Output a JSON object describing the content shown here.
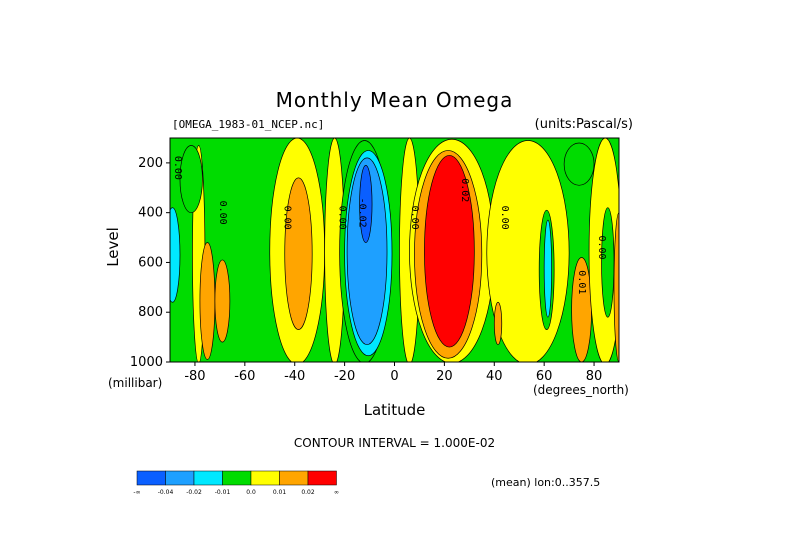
{
  "chart_data": {
    "type": "heatmap",
    "title": "Monthly Mean Omega",
    "subtitle_left": "[OMEGA_1983-01_NCEP.nc]",
    "subtitle_right": "(units:Pascal/s)",
    "xlabel": "Latitude",
    "x_unit": "(degrees_north)",
    "ylabel": "Level",
    "y_unit": "(millibar)",
    "xlim": [
      -90,
      90
    ],
    "ylim": [
      1000,
      100
    ],
    "x_ticks": [
      -80,
      -60,
      -40,
      -20,
      0,
      20,
      40,
      60,
      80
    ],
    "y_ticks": [
      200,
      400,
      600,
      800,
      1000
    ],
    "contour_interval_text": "CONTOUR INTERVAL = 1.000E-02",
    "contour_labels": [
      {
        "text": "0.00",
        "x": -88,
        "y": 220
      },
      {
        "text": "0.00",
        "x": -70,
        "y": 400
      },
      {
        "text": "0.00",
        "x": -44,
        "y": 420
      },
      {
        "text": "0.00",
        "x": -22,
        "y": 420
      },
      {
        "text": "-0.02",
        "x": -14,
        "y": 400
      },
      {
        "text": "0.00",
        "x": 7,
        "y": 420
      },
      {
        "text": "0.02",
        "x": 27,
        "y": 310
      },
      {
        "text": "0.00",
        "x": 43,
        "y": 420
      },
      {
        "text": "0.01",
        "x": 74,
        "y": 680
      },
      {
        "text": "0.00",
        "x": 82,
        "y": 540
      }
    ],
    "colorbar": {
      "colors": [
        "#0a5fff",
        "#1ea0ff",
        "#00e8ff",
        "#00dc00",
        "#ffff00",
        "#ffa500",
        "#ff0000"
      ],
      "labels": [
        "-∞",
        "-0.04",
        "-0.02",
        "-0.01",
        "0.0",
        "0.01",
        "0.02",
        "∞"
      ]
    },
    "footer_right": "(mean) lon:0..357.5",
    "grid": false
  }
}
